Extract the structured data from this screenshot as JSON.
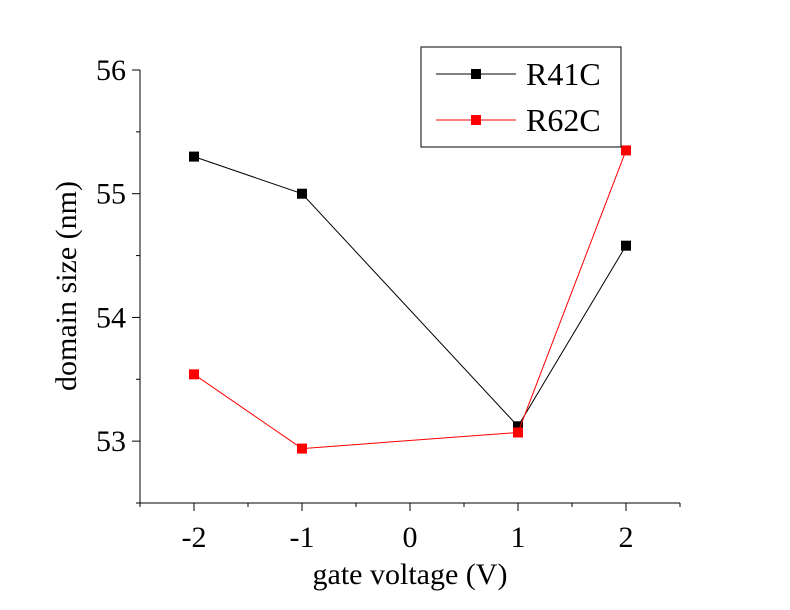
{
  "chart_data": {
    "type": "line",
    "title": "",
    "xlabel": "gate voltage (V)",
    "ylabel": "domain size (nm)",
    "xlim": [
      -2.5,
      2.5
    ],
    "ylim": [
      52.5,
      56
    ],
    "x_ticks": [
      -2,
      -1,
      0,
      1,
      2
    ],
    "x_tick_labels": [
      "-2",
      "-1",
      "0",
      "1",
      "2"
    ],
    "y_ticks": [
      53,
      54,
      55,
      56
    ],
    "y_tick_labels": [
      "53",
      "54",
      "55",
      "56"
    ],
    "grid": false,
    "legend_position": "top-right",
    "series": [
      {
        "name": "R41C",
        "color": "#000000",
        "marker": "square",
        "x": [
          -2,
          -1,
          1,
          2
        ],
        "y": [
          55.3,
          55.0,
          53.12,
          54.58
        ]
      },
      {
        "name": "R62C",
        "color": "#ff0000",
        "marker": "square",
        "x": [
          -2,
          -1,
          1,
          2
        ],
        "y": [
          53.54,
          52.94,
          53.07,
          55.35
        ]
      }
    ]
  }
}
